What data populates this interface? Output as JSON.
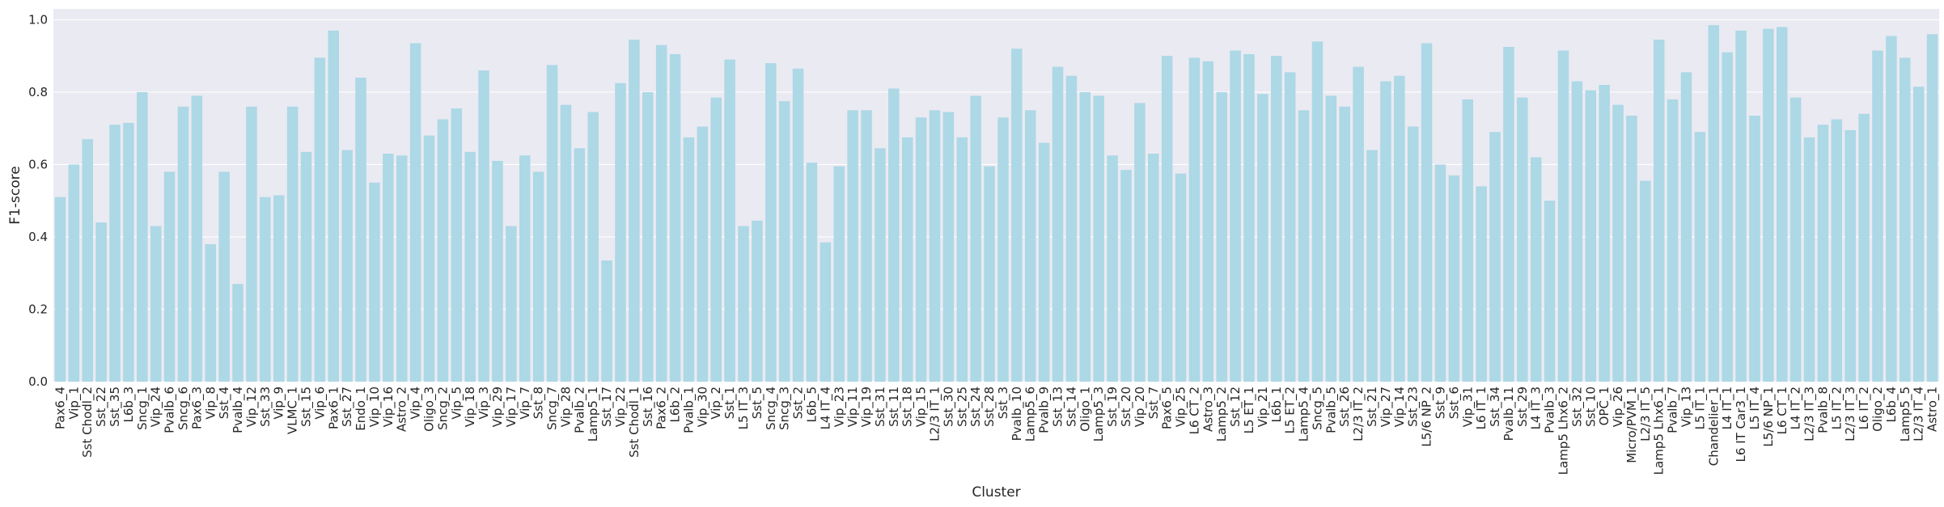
{
  "chart_data": {
    "type": "bar",
    "xlabel": "Cluster",
    "ylabel": "F1-score",
    "ylim": [
      0,
      1.03
    ],
    "yticks": [
      0.0,
      0.2,
      0.4,
      0.6,
      0.8,
      1.0
    ],
    "ytick_labels": [
      "0.0",
      "0.2",
      "0.4",
      "0.6",
      "0.8",
      "1.0"
    ],
    "grid": true,
    "bar_color": "#add8e6",
    "background_color": "#eaeaf2",
    "categories": [
      "Pax6_4",
      "Vip_1",
      "Sst Chodl_2",
      "Sst_22",
      "Sst_35",
      "L6b_3",
      "Sncg_1",
      "Vip_24",
      "Pvalb_6",
      "Sncg_6",
      "Pax6_3",
      "Vip_8",
      "Sst_4",
      "Pvalb_4",
      "Vip_12",
      "Sst_33",
      "Vip_9",
      "VLMC_1",
      "Sst_15",
      "Vip_6",
      "Pax6_1",
      "Sst_27",
      "Endo_1",
      "Vip_10",
      "Vip_16",
      "Astro_2",
      "Vip_4",
      "Oligo_3",
      "Sncg_2",
      "Vip_5",
      "Vip_18",
      "Vip_3",
      "Vip_29",
      "Vip_17",
      "Vip_7",
      "Sst_8",
      "Sncg_7",
      "Vip_28",
      "Pvalb_2",
      "Lamp5_1",
      "Sst_17",
      "Vip_22",
      "Sst Chodl_1",
      "Sst_16",
      "Pax6_2",
      "L6b_2",
      "Pvalb_1",
      "Vip_30",
      "Vip_2",
      "Sst_1",
      "L5 IT_3",
      "Sst_5",
      "Sncg_4",
      "Sncg_3",
      "Sst_2",
      "L6b_5",
      "L4 IT_4",
      "Vip_23",
      "Vip_11",
      "Vip_19",
      "Sst_31",
      "Sst_11",
      "Sst_18",
      "Vip_15",
      "L2/3 IT_1",
      "Sst_30",
      "Sst_25",
      "Sst_24",
      "Sst_28",
      "Sst_3",
      "Pvalb_10",
      "Lamp5_6",
      "Pvalb_9",
      "Sst_13",
      "Sst_14",
      "Oligo_1",
      "Lamp5_3",
      "Sst_19",
      "Sst_20",
      "Vip_20",
      "Sst_7",
      "Pax6_5",
      "Vip_25",
      "L6 CT_2",
      "Astro_3",
      "Lamp5_2",
      "Sst_12",
      "L5 ET_1",
      "Vip_21",
      "L6b_1",
      "L5 ET_2",
      "Lamp5_4",
      "Sncg_5",
      "Pvalb_5",
      "Sst_26",
      "L2/3 IT_2",
      "Sst_21",
      "Vip_27",
      "Vip_14",
      "Sst_23",
      "L5/6 NP_2",
      "Sst_9",
      "Sst_6",
      "Vip_31",
      "L6 IT_1",
      "Sst_34",
      "Pvalb_11",
      "Sst_29",
      "L4 IT_3",
      "Pvalb_3",
      "Lamp5 Lhx6_2",
      "Sst_32",
      "Sst_10",
      "OPC_1",
      "Vip_26",
      "Micro/PVM_1",
      "L2/3 IT_5",
      "Lamp5 Lhx6_1",
      "Pvalb_7",
      "Vip_13",
      "L5 IT_1",
      "Chandelier_1",
      "L4 IT_1",
      "L6 IT Car3_1",
      "L5 IT_4",
      "L5/6 NP_1",
      "L6 CT_1",
      "L4 IT_2",
      "L2/3 IT_3",
      "Pvalb_8",
      "L5 IT_2",
      "L2/3 IT_3",
      "L6 IT_2",
      "Oligo_2",
      "L6b_4",
      "Lamp5_5",
      "L2/3 IT_4",
      "Astro_1"
    ],
    "values": [
      0.51,
      0.6,
      0.67,
      0.44,
      0.71,
      0.715,
      0.8,
      0.43,
      0.58,
      0.76,
      0.79,
      0.38,
      0.58,
      0.27,
      0.76,
      0.51,
      0.515,
      0.76,
      0.635,
      0.895,
      0.97,
      0.64,
      0.84,
      0.55,
      0.63,
      0.625,
      0.935,
      0.68,
      0.725,
      0.755,
      0.635,
      0.86,
      0.61,
      0.43,
      0.625,
      0.58,
      0.875,
      0.765,
      0.645,
      0.745,
      0.335,
      0.825,
      0.945,
      0.8,
      0.93,
      0.905,
      0.675,
      0.705,
      0.785,
      0.89,
      0.43,
      0.445,
      0.88,
      0.775,
      0.865,
      0.605,
      0.385,
      0.595,
      0.75,
      0.75,
      0.645,
      0.81,
      0.675,
      0.73,
      0.75,
      0.745,
      0.675,
      0.79,
      0.595,
      0.73,
      0.92,
      0.75,
      0.66,
      0.87,
      0.845,
      0.8,
      0.79,
      0.625,
      0.585,
      0.77,
      0.63,
      0.9,
      0.575,
      0.895,
      0.885,
      0.8,
      0.915,
      0.905,
      0.795,
      0.9,
      0.855,
      0.75,
      0.94,
      0.79,
      0.76,
      0.87,
      0.64,
      0.83,
      0.845,
      0.705,
      0.935,
      0.6,
      0.57,
      0.78,
      0.54,
      0.69,
      0.925,
      0.785,
      0.62,
      0.5,
      0.915,
      0.83,
      0.805,
      0.82,
      0.765,
      0.735,
      0.555,
      0.945,
      0.78,
      0.855,
      0.69,
      0.985,
      0.91,
      0.97,
      0.735,
      0.975,
      0.98,
      0.785,
      0.675,
      0.71,
      0.725,
      0.695,
      0.74,
      0.915,
      0.955,
      0.895,
      0.815,
      0.96
    ]
  }
}
